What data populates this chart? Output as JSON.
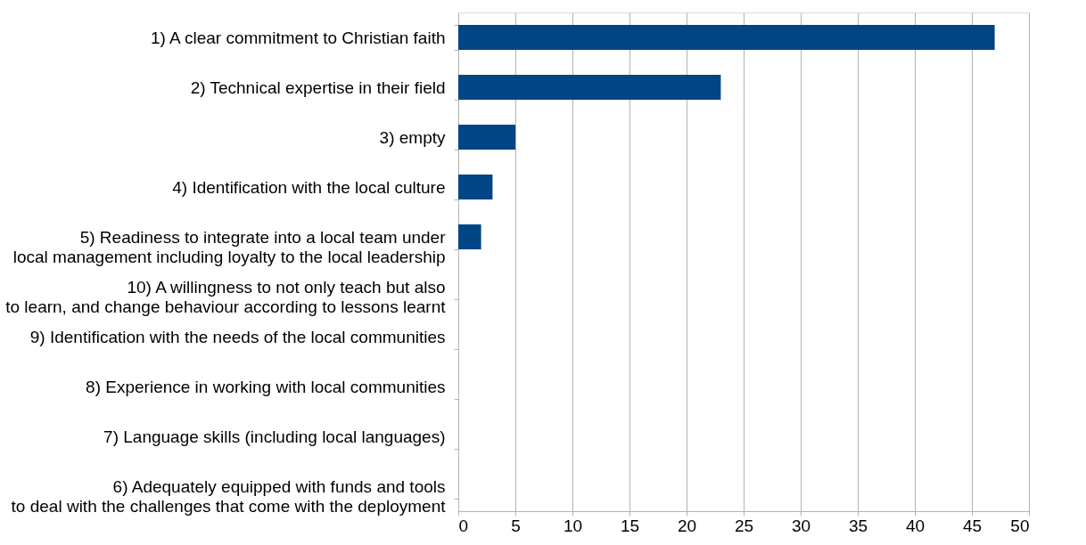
{
  "chart_data": {
    "type": "bar",
    "orientation": "horizontal",
    "categories": [
      "1) A clear commitment to Christian faith",
      "2) Technical expertise in their field",
      "3) empty",
      "4) Identification with the local culture",
      "5) Readiness to integrate into a local team under\nlocal management including loyalty to the local leadership",
      "10) A willingness to not only teach but also\nto learn, and change behaviour according to lessons learnt",
      "9) Identification with the needs of the local communities",
      "8) Experience in working with local communities",
      "7) Language skills (including local languages)",
      "6) Adequately equipped with funds and tools\nto deal with the challenges that come with the deployment"
    ],
    "values": [
      47,
      23,
      5,
      3,
      2,
      0,
      0,
      0,
      0,
      0
    ],
    "color": "#004586",
    "xlim": [
      0,
      50
    ],
    "xticks": [
      0,
      5,
      10,
      15,
      20,
      25,
      30,
      35,
      40,
      45,
      50
    ],
    "grid": "x"
  }
}
